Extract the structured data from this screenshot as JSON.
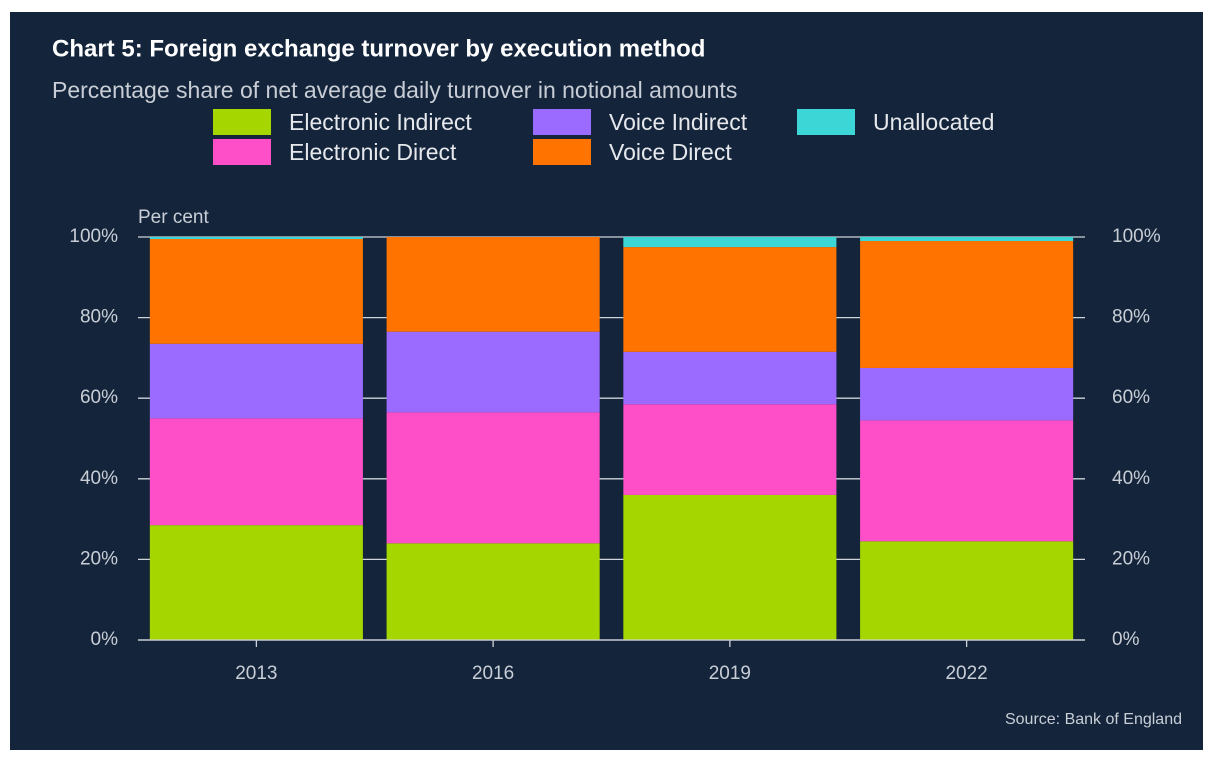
{
  "chart_data": {
    "type": "stacked_bar",
    "title": "Chart 5: Foreign exchange turnover by execution method",
    "subtitle": "Percentage share of net average daily turnover in notional amounts",
    "y_label": "Per cent",
    "source": "Source: Bank of England",
    "categories": [
      "2013",
      "2016",
      "2019",
      "2022"
    ],
    "series": [
      {
        "name": "Electronic Indirect",
        "color": "#a5d600",
        "values": [
          28.5,
          24,
          36,
          24.5
        ]
      },
      {
        "name": "Electronic Direct",
        "color": "#ff4fc8",
        "values": [
          26.5,
          32.5,
          22.5,
          30
        ]
      },
      {
        "name": "Voice Indirect",
        "color": "#9b6bff",
        "values": [
          18.5,
          20,
          13,
          13
        ]
      },
      {
        "name": "Voice Direct",
        "color": "#ff7300",
        "values": [
          26,
          23.5,
          26,
          31.5
        ]
      },
      {
        "name": "Unallocated",
        "color": "#3dd6d6",
        "values": [
          0.5,
          0,
          2.5,
          1
        ]
      }
    ],
    "ylim": [
      0,
      100
    ],
    "yticks": [
      {
        "value": 0,
        "label": "0%"
      },
      {
        "value": 20,
        "label": "20%"
      },
      {
        "value": 40,
        "label": "40%"
      },
      {
        "value": 60,
        "label": "60%"
      },
      {
        "value": 80,
        "label": "80%"
      },
      {
        "value": 100,
        "label": "100%"
      }
    ],
    "grid": true
  }
}
